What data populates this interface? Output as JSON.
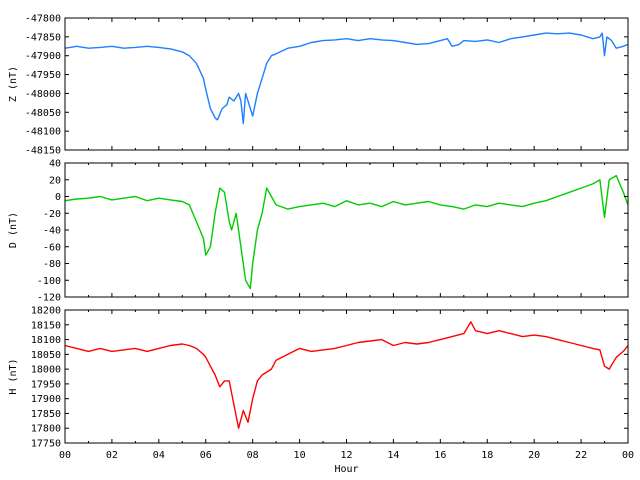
{
  "chart_data": [
    {
      "type": "line",
      "ylabel": "Z (nT)",
      "ylim": [
        -48150,
        -47800
      ],
      "yticks": [
        -48150,
        -48100,
        -48050,
        -48000,
        -47950,
        -47900,
        -47850,
        -47800
      ],
      "xlim": [
        0,
        24
      ],
      "color": "#1e7fff",
      "series": [
        {
          "x": [
            0,
            0.5,
            1,
            1.5,
            2,
            2.5,
            3,
            3.5,
            4,
            4.5,
            5,
            5.3,
            5.6,
            5.9,
            6.0,
            6.2,
            6.4,
            6.5,
            6.7,
            6.9,
            7.0,
            7.2,
            7.4,
            7.5,
            7.6,
            7.7,
            7.8,
            8.0,
            8.2,
            8.4,
            8.6,
            8.8,
            9.0,
            9.5,
            10,
            10.5,
            11,
            11.5,
            12,
            12.5,
            13,
            13.5,
            14,
            14.5,
            15,
            15.5,
            16,
            16.3,
            16.5,
            16.8,
            17,
            17.5,
            18,
            18.5,
            19,
            19.5,
            20,
            20.5,
            21,
            21.5,
            22,
            22.5,
            22.8,
            22.9,
            23.0,
            23.1,
            23.3,
            23.5,
            23.8,
            24
          ],
          "y": [
            -47880,
            -47875,
            -47880,
            -47878,
            -47875,
            -47880,
            -47878,
            -47875,
            -47878,
            -47882,
            -47890,
            -47900,
            -47920,
            -47960,
            -47990,
            -48040,
            -48065,
            -48070,
            -48040,
            -48030,
            -48010,
            -48020,
            -48000,
            -48020,
            -48080,
            -48000,
            -48020,
            -48060,
            -48000,
            -47960,
            -47920,
            -47900,
            -47895,
            -47880,
            -47875,
            -47865,
            -47860,
            -47858,
            -47855,
            -47860,
            -47855,
            -47858,
            -47860,
            -47865,
            -47870,
            -47868,
            -47860,
            -47855,
            -47875,
            -47870,
            -47860,
            -47862,
            -47858,
            -47865,
            -47855,
            -47850,
            -47845,
            -47840,
            -47842,
            -47840,
            -47845,
            -47855,
            -47850,
            -47840,
            -47900,
            -47850,
            -47860,
            -47880,
            -47875,
            -47870
          ]
        }
      ]
    },
    {
      "type": "line",
      "ylabel": "D (nT)",
      "ylim": [
        -120,
        40
      ],
      "yticks": [
        -120,
        -100,
        -80,
        -60,
        -40,
        -20,
        0,
        20,
        40
      ],
      "xlim": [
        0,
        24
      ],
      "color": "#00cc00",
      "series": [
        {
          "x": [
            0,
            0.5,
            1,
            1.5,
            2,
            2.5,
            3,
            3.5,
            4,
            4.5,
            5,
            5.3,
            5.6,
            5.9,
            6.0,
            6.2,
            6.4,
            6.6,
            6.8,
            7.0,
            7.1,
            7.3,
            7.5,
            7.7,
            7.9,
            8.0,
            8.2,
            8.4,
            8.6,
            8.8,
            9.0,
            9.5,
            10,
            10.5,
            11,
            11.5,
            12,
            12.5,
            13,
            13.5,
            14,
            14.5,
            15,
            15.5,
            16,
            16.5,
            17,
            17.5,
            18,
            18.5,
            19,
            19.5,
            20,
            20.5,
            21,
            21.5,
            22,
            22.5,
            22.8,
            23.0,
            23.2,
            23.5,
            23.8,
            24
          ],
          "y": [
            -5,
            -3,
            -2,
            0,
            -4,
            -2,
            0,
            -5,
            -2,
            -4,
            -6,
            -10,
            -30,
            -50,
            -70,
            -60,
            -20,
            10,
            5,
            -30,
            -40,
            -20,
            -60,
            -100,
            -110,
            -80,
            -40,
            -20,
            10,
            0,
            -10,
            -15,
            -12,
            -10,
            -8,
            -12,
            -5,
            -10,
            -8,
            -12,
            -6,
            -10,
            -8,
            -6,
            -10,
            -12,
            -15,
            -10,
            -12,
            -8,
            -10,
            -12,
            -8,
            -5,
            0,
            5,
            10,
            15,
            20,
            -25,
            20,
            25,
            5,
            -10
          ]
        }
      ]
    },
    {
      "type": "line",
      "ylabel": "H (nT)",
      "ylim": [
        17750,
        18200
      ],
      "yticks": [
        17750,
        17800,
        17850,
        17900,
        17950,
        18000,
        18050,
        18100,
        18150,
        18200
      ],
      "xlim": [
        0,
        24
      ],
      "xlabel": "Hour",
      "xticks": [
        "00",
        "02",
        "04",
        "06",
        "08",
        "10",
        "12",
        "14",
        "16",
        "18",
        "20",
        "22",
        "00"
      ],
      "color": "#ff0000",
      "series": [
        {
          "x": [
            0,
            0.5,
            1,
            1.5,
            2,
            2.5,
            3,
            3.5,
            4,
            4.5,
            5,
            5.3,
            5.6,
            5.9,
            6.0,
            6.2,
            6.4,
            6.6,
            6.8,
            7.0,
            7.2,
            7.4,
            7.6,
            7.8,
            8.0,
            8.2,
            8.4,
            8.6,
            8.8,
            9.0,
            9.5,
            10,
            10.5,
            11,
            11.5,
            12,
            12.5,
            13,
            13.5,
            14,
            14.5,
            15,
            15.5,
            16,
            16.5,
            17,
            17.3,
            17.5,
            18,
            18.5,
            19,
            19.5,
            20,
            20.5,
            21,
            21.5,
            22,
            22.5,
            22.8,
            23.0,
            23.2,
            23.5,
            23.8,
            24
          ],
          "y": [
            18080,
            18070,
            18060,
            18070,
            18060,
            18065,
            18070,
            18060,
            18070,
            18080,
            18085,
            18080,
            18070,
            18050,
            18040,
            18010,
            17980,
            17940,
            17960,
            17960,
            17880,
            17800,
            17860,
            17820,
            17900,
            17960,
            17980,
            17990,
            18000,
            18030,
            18050,
            18070,
            18060,
            18065,
            18070,
            18080,
            18090,
            18095,
            18100,
            18080,
            18090,
            18085,
            18090,
            18100,
            18110,
            18120,
            18160,
            18130,
            18120,
            18130,
            18120,
            18110,
            18115,
            18110,
            18100,
            18090,
            18080,
            18070,
            18065,
            18010,
            18000,
            18040,
            18060,
            18080
          ]
        }
      ]
    }
  ]
}
